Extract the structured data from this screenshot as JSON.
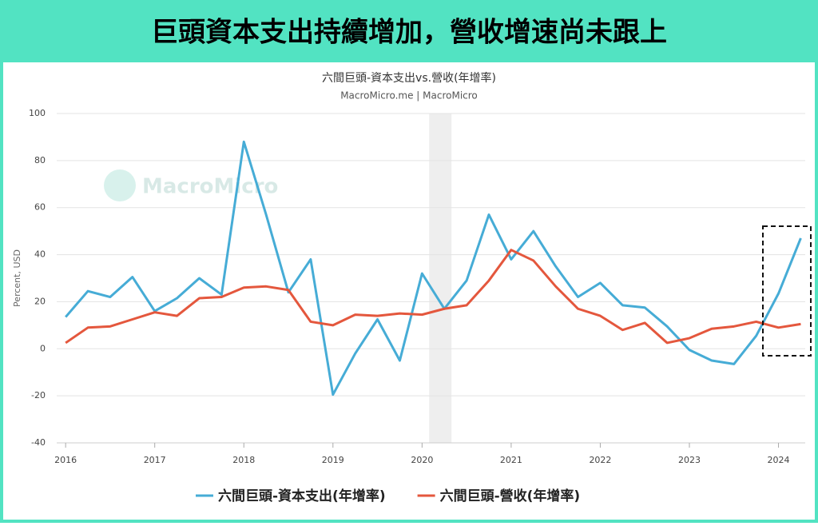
{
  "header": {
    "title": "巨頭資本支出持續增加，營收增速尚未跟上"
  },
  "chart_data": {
    "type": "line",
    "title": "六間巨頭-資本支出vs.營收(年增率)",
    "subtitle": "MacroMicro.me | MacroMicro",
    "watermark": "MacroMicro",
    "y_label": "Percent, USD",
    "x": [
      2016,
      2016.25,
      2016.5,
      2016.75,
      2017,
      2017.25,
      2017.5,
      2017.75,
      2018,
      2018.25,
      2018.5,
      2018.75,
      2019,
      2019.25,
      2019.5,
      2019.75,
      2020,
      2020.25,
      2020.5,
      2020.75,
      2021,
      2021.25,
      2021.5,
      2021.75,
      2022,
      2022.25,
      2022.5,
      2022.75,
      2023,
      2023.25,
      2023.5,
      2023.75,
      2024,
      2024.25
    ],
    "series": [
      {
        "name": "六間巨頭-資本支出(年增率)",
        "color": "#46acd6",
        "values": [
          13.5,
          24.5,
          22,
          30.5,
          16,
          21.5,
          30,
          23,
          88,
          57,
          24,
          38,
          -19.5,
          -2,
          12.5,
          -5,
          32,
          17,
          29,
          57,
          38,
          50,
          35,
          22,
          28,
          18.5,
          17.5,
          9.5,
          -0.5,
          -5,
          -6.5,
          5.5,
          23.5,
          47
        ]
      },
      {
        "name": "六間巨頭-營收(年增率)",
        "color": "#e4573d",
        "values": [
          2.5,
          9,
          9.5,
          12.5,
          15.5,
          14,
          21.5,
          22,
          26,
          26.5,
          25,
          11.5,
          10,
          14.5,
          14,
          15,
          14.5,
          17,
          18.5,
          29,
          42,
          37.5,
          26.5,
          17,
          14,
          8,
          11,
          2.5,
          4.5,
          8.5,
          9.5,
          11.5,
          9,
          10.5
        ]
      }
    ],
    "shaded_region": [
      2020.08,
      2020.33
    ],
    "xlim": [
      2015.9,
      2024.3
    ],
    "xticks": [
      2016,
      2017,
      2018,
      2019,
      2020,
      2021,
      2022,
      2023,
      2024
    ],
    "ylim": [
      -40,
      100
    ],
    "yticks": [
      -40,
      -20,
      0,
      20,
      40,
      60,
      80,
      100
    ],
    "grid": true,
    "legend": "bottom"
  }
}
